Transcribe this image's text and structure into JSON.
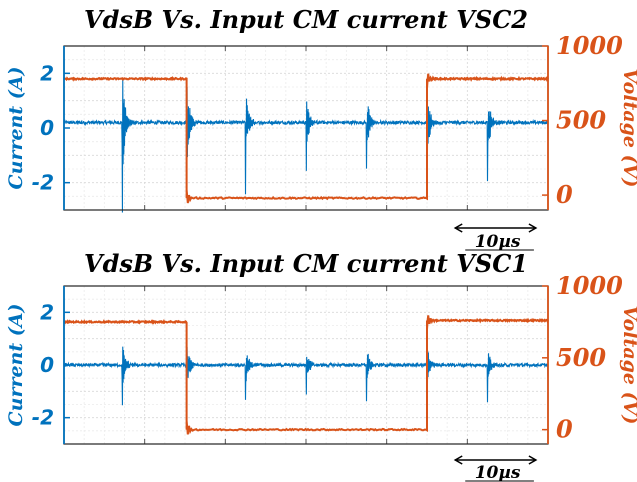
{
  "chart_data": [
    {
      "type": "line",
      "title": "VdsB Vs. Input CM current VSC2",
      "ylabel": "Current (A)",
      "y2label": "Voltage (V)",
      "ylim": [
        -3,
        3
      ],
      "y2lim": [
        -100,
        1000
      ],
      "yticks": [
        "2",
        "0",
        "-2"
      ],
      "yticks_values": [
        2,
        0,
        -2
      ],
      "y2ticks": [
        "1000",
        "500",
        "0"
      ],
      "y2ticks_values": [
        1000,
        500,
        0
      ],
      "xlim": [
        0,
        60
      ],
      "x_unit": "µs",
      "scale_bar": {
        "label": "10µs",
        "length": 10
      },
      "grid": true,
      "series": [
        {
          "color": "#0072BD",
          "axis": "left",
          "baseline": 0.2,
          "spike_times": [
            7.2,
            15.2,
            22.5,
            30.0,
            37.5,
            45.0,
            52.5,
            60.0
          ],
          "spike_amplitudes": [
            2.2,
            1.7,
            1.3,
            1.2,
            1.1,
            1.2,
            1.3,
            1.1
          ]
        },
        {
          "color": "#D95319",
          "axis": "right",
          "steps": [
            {
              "x": 0,
              "y": 780
            },
            {
              "x": 15.2,
              "y": -20
            },
            {
              "x": 45.0,
              "y": 780
            },
            {
              "x": 60,
              "y": 780
            }
          ]
        }
      ]
    },
    {
      "type": "line",
      "title": "VdsB Vs. Input CM current VSC1",
      "ylabel": "Current (A)",
      "y2label": "Voltage (V)",
      "ylim": [
        -3,
        3
      ],
      "y2lim": [
        -100,
        1000
      ],
      "yticks": [
        "2",
        "0",
        "-2"
      ],
      "yticks_values": [
        2,
        0,
        -2
      ],
      "y2ticks": [
        "1000",
        "500",
        "0"
      ],
      "y2ticks_values": [
        1000,
        500,
        0
      ],
      "xlim": [
        0,
        60
      ],
      "x_unit": "µs",
      "scale_bar": {
        "label": "10µs",
        "length": 10
      },
      "grid": true,
      "series": [
        {
          "color": "#0072BD",
          "axis": "left",
          "baseline": 0.0,
          "spike_times": [
            7.2,
            15.2,
            22.5,
            30.0,
            37.5,
            45.0,
            52.5,
            60.0
          ],
          "spike_amplitudes": [
            1.1,
            0.9,
            0.8,
            0.8,
            0.7,
            0.8,
            0.8,
            0.9
          ]
        },
        {
          "color": "#D95319",
          "axis": "right",
          "steps": [
            {
              "x": 0,
              "y": 750
            },
            {
              "x": 15.2,
              "y": 0
            },
            {
              "x": 45.0,
              "y": 760
            },
            {
              "x": 60,
              "y": 760
            }
          ]
        }
      ]
    }
  ]
}
